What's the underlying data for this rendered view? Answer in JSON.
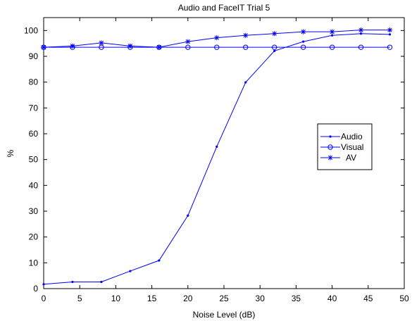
{
  "chart_data": {
    "type": "line",
    "title": "Audio and FaceIT Trial 5",
    "xlabel": "Noise Level (dB)",
    "ylabel": "%",
    "xlim": [
      0,
      50
    ],
    "ylim": [
      0,
      105
    ],
    "xticks": [
      "0",
      "5",
      "10",
      "15",
      "20",
      "25",
      "30",
      "35",
      "40",
      "45",
      "50"
    ],
    "yticks": [
      "0",
      "10",
      "20",
      "30",
      "40",
      "50",
      "60",
      "70",
      "80",
      "90",
      "100"
    ],
    "grid": false,
    "legend_position": "right",
    "series_color": "#0000ff",
    "x": [
      0,
      4,
      8,
      12,
      16,
      20,
      24,
      28,
      32,
      36,
      40,
      44,
      48
    ],
    "series": [
      {
        "name": "Audio",
        "marker": "dot",
        "values": [
          1.7,
          2.6,
          2.6,
          6.8,
          10.9,
          28.3,
          55,
          79.9,
          92.1,
          95.7,
          98.1,
          98.8,
          98.5
        ]
      },
      {
        "name": "Visual",
        "marker": "circle",
        "values": [
          93.5,
          93.5,
          93.5,
          93.5,
          93.5,
          93.5,
          93.5,
          93.5,
          93.5,
          93.5,
          93.5,
          93.5,
          93.5
        ]
      },
      {
        "name": "AV",
        "marker": "star",
        "values": [
          93.5,
          94,
          95.2,
          94,
          93.5,
          95.7,
          97.2,
          98.1,
          98.8,
          99.5,
          99.5,
          100.2,
          100.2
        ]
      }
    ]
  }
}
